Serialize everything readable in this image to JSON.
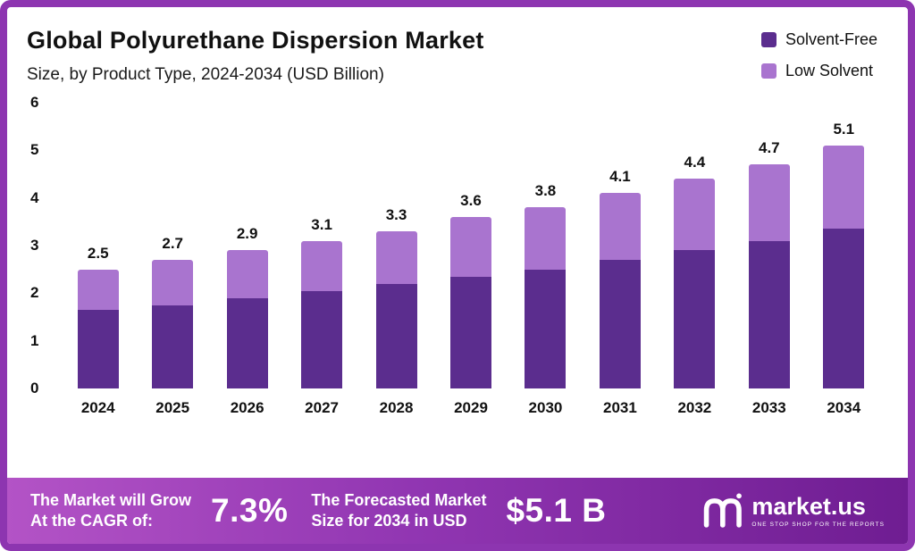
{
  "header": {
    "title": "Global Polyurethane Dispersion Market",
    "subtitle": "Size, by Product Type, 2024-2034 (USD Billion)"
  },
  "legend": {
    "items": [
      {
        "label": "Solvent-Free",
        "color": "#5b2d8e"
      },
      {
        "label": "Low Solvent",
        "color": "#a974cf"
      }
    ]
  },
  "chart_data": {
    "type": "bar",
    "stacked": true,
    "title": "Global Polyurethane Dispersion Market",
    "subtitle": "Size, by Product Type, 2024-2034 (USD Billion)",
    "unit": "USD Billion",
    "categories": [
      "2024",
      "2025",
      "2026",
      "2027",
      "2028",
      "2029",
      "2030",
      "2031",
      "2032",
      "2033",
      "2034"
    ],
    "series": [
      {
        "name": "Solvent-Free",
        "color": "#5b2d8e",
        "values": [
          1.65,
          1.75,
          1.9,
          2.05,
          2.2,
          2.35,
          2.5,
          2.7,
          2.9,
          3.1,
          3.35
        ]
      },
      {
        "name": "Low Solvent",
        "color": "#a974cf",
        "values": [
          0.85,
          0.95,
          1.0,
          1.05,
          1.1,
          1.25,
          1.3,
          1.4,
          1.5,
          1.6,
          1.75
        ]
      }
    ],
    "totals": [
      2.5,
      2.7,
      2.9,
      3.1,
      3.3,
      3.6,
      3.8,
      4.1,
      4.4,
      4.7,
      5.1
    ],
    "ylim": [
      0,
      6
    ],
    "yticks": [
      6,
      5,
      4,
      3,
      2,
      1,
      0
    ],
    "grid": false,
    "legend_position": "top-right"
  },
  "footer": {
    "cagr_label_line1": "The Market will Grow",
    "cagr_label_line2": "At the CAGR of:",
    "cagr_value": "7.3%",
    "forecast_label_line1": "The Forecasted Market",
    "forecast_label_line2": "Size for 2034 in USD",
    "forecast_value": "$5.1 B",
    "brand": "market.us",
    "brand_tagline": "One Stop Shop For The Reports"
  }
}
